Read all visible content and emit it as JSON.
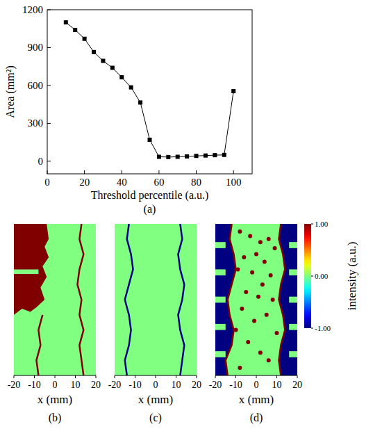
{
  "chart_data": [
    {
      "type": "line",
      "panel": "(a)",
      "xlabel": "Threshold percentile (a.u.)",
      "ylabel": "Area (mm²)",
      "x": [
        10,
        15,
        20,
        25,
        30,
        35,
        40,
        45,
        50,
        55,
        60,
        65,
        70,
        75,
        80,
        85,
        90,
        95,
        100
      ],
      "values": [
        1100,
        1040,
        970,
        865,
        795,
        740,
        665,
        585,
        465,
        170,
        35,
        33,
        35,
        38,
        42,
        45,
        48,
        50,
        555
      ],
      "color": "#000000",
      "marker": "square",
      "xlim": [
        0,
        110
      ],
      "ylim": [
        -100,
        1200
      ],
      "xticks": [
        0,
        20,
        40,
        60,
        80,
        100
      ],
      "yticks": [
        0,
        300,
        600,
        900,
        1200
      ]
    },
    {
      "type": "image",
      "panel": "(b)",
      "xlabel": "x (mm)",
      "xlim": [
        -20,
        20
      ],
      "xticks": [
        -20,
        -10,
        0,
        10,
        20
      ],
      "ylim": [
        0,
        100
      ],
      "tick_labels": "x",
      "background": 0,
      "regions": [
        {
          "kind": "polygon",
          "value": 1,
          "x": [
            -20,
            -4,
            -3,
            -5,
            -3,
            -6,
            -4,
            -7,
            -5,
            -9,
            -12,
            -16,
            -20
          ],
          "y": [
            100,
            100,
            90,
            85,
            78,
            72,
            65,
            58,
            50,
            45,
            42,
            44,
            40
          ]
        },
        {
          "kind": "polygon",
          "value": 0,
          "x": [
            -20,
            -8,
            -8,
            -20
          ],
          "y": [
            70,
            70,
            67,
            67
          ]
        },
        {
          "kind": "line",
          "value": 1,
          "x": [
            -6,
            -8,
            -7,
            -9,
            -8
          ],
          "y": [
            40,
            30,
            20,
            10,
            0
          ]
        },
        {
          "kind": "line",
          "value": 1,
          "x": [
            13,
            12,
            14,
            12,
            11,
            13,
            12,
            14,
            12,
            13,
            14
          ],
          "y": [
            100,
            90,
            80,
            70,
            60,
            50,
            40,
            30,
            20,
            10,
            0
          ]
        }
      ]
    },
    {
      "type": "image",
      "panel": "(c)",
      "xlabel": "x (mm)",
      "xlim": [
        -20,
        20
      ],
      "xticks": [
        -20,
        -10,
        0,
        10,
        20
      ],
      "ylim": [
        0,
        100
      ],
      "tick_labels": "x",
      "background": 0,
      "regions": [
        {
          "kind": "line",
          "value": -1,
          "x": [
            -13,
            -14,
            -12,
            -11,
            -13,
            -15,
            -13,
            -12,
            -13,
            -15,
            -14
          ],
          "y": [
            100,
            90,
            80,
            70,
            60,
            50,
            40,
            30,
            20,
            10,
            0
          ]
        },
        {
          "kind": "line",
          "value": -1,
          "x": [
            12,
            13,
            11,
            12,
            14,
            13,
            11,
            12,
            14,
            13,
            12
          ],
          "y": [
            100,
            90,
            80,
            70,
            60,
            50,
            40,
            30,
            20,
            10,
            0
          ]
        }
      ]
    },
    {
      "type": "image",
      "panel": "(d)",
      "xlabel": "x (mm)",
      "xlim": [
        -20,
        20
      ],
      "xticks": [
        -20,
        -10,
        0,
        10,
        20
      ],
      "ylim": [
        0,
        100
      ],
      "tick_labels": "x",
      "background": 0,
      "regions": [
        {
          "kind": "polygon",
          "value": -1,
          "x": [
            -20,
            -12,
            -13,
            -11,
            -10,
            -12,
            -14,
            -13,
            -11,
            -12,
            -15,
            -14,
            -20
          ],
          "y": [
            100,
            100,
            90,
            80,
            70,
            60,
            50,
            40,
            30,
            20,
            10,
            0,
            0
          ]
        },
        {
          "kind": "polygon",
          "value": -1,
          "x": [
            20,
            12,
            11,
            13,
            14,
            12,
            11,
            13,
            14,
            12,
            11,
            12,
            20
          ],
          "y": [
            100,
            100,
            90,
            80,
            70,
            60,
            50,
            40,
            30,
            20,
            10,
            0,
            0
          ]
        },
        {
          "kind": "polygon",
          "value": 0,
          "x": [
            -20,
            -15,
            -15,
            -20
          ],
          "y": [
            88,
            88,
            84,
            84
          ]
        },
        {
          "kind": "polygon",
          "value": 0,
          "x": [
            -20,
            -15,
            -15,
            -20
          ],
          "y": [
            70,
            70,
            66,
            66
          ]
        },
        {
          "kind": "polygon",
          "value": 0,
          "x": [
            -20,
            -15,
            -15,
            -20
          ],
          "y": [
            52,
            52,
            48,
            48
          ]
        },
        {
          "kind": "polygon",
          "value": 0,
          "x": [
            -20,
            -15,
            -15,
            -20
          ],
          "y": [
            34,
            34,
            30,
            30
          ]
        },
        {
          "kind": "polygon",
          "value": 0,
          "x": [
            -20,
            -15,
            -15,
            -20
          ],
          "y": [
            16,
            16,
            12,
            12
          ]
        },
        {
          "kind": "polygon",
          "value": 0,
          "x": [
            20,
            16,
            16,
            20
          ],
          "y": [
            88,
            88,
            84,
            84
          ]
        },
        {
          "kind": "polygon",
          "value": 0,
          "x": [
            20,
            16,
            16,
            20
          ],
          "y": [
            70,
            70,
            66,
            66
          ]
        },
        {
          "kind": "polygon",
          "value": 0,
          "x": [
            20,
            16,
            16,
            20
          ],
          "y": [
            52,
            52,
            48,
            48
          ]
        },
        {
          "kind": "polygon",
          "value": 0,
          "x": [
            20,
            16,
            16,
            20
          ],
          "y": [
            34,
            34,
            30,
            30
          ]
        },
        {
          "kind": "polygon",
          "value": 0,
          "x": [
            20,
            16,
            16,
            20
          ],
          "y": [
            16,
            16,
            12,
            12
          ]
        },
        {
          "kind": "line",
          "value": 1,
          "x": [
            -12,
            -13,
            -11,
            -10,
            -12,
            -14,
            -13,
            -11,
            -12,
            -15,
            -14
          ],
          "y": [
            100,
            90,
            80,
            70,
            60,
            50,
            40,
            30,
            20,
            10,
            0
          ]
        },
        {
          "kind": "line",
          "value": 1,
          "x": [
            12,
            11,
            13,
            14,
            12,
            11,
            13,
            14,
            12,
            11,
            12
          ],
          "y": [
            100,
            90,
            80,
            70,
            60,
            50,
            40,
            30,
            20,
            10,
            0
          ]
        }
      ],
      "dots": {
        "value": 1,
        "x": [
          -8,
          -3,
          2,
          6,
          9,
          -6,
          0,
          4,
          -9,
          -2,
          7,
          3,
          -5,
          1,
          8,
          -7,
          5,
          -1,
          -10,
          10,
          -4,
          2,
          6,
          -8
        ],
        "y": [
          95,
          92,
          88,
          90,
          84,
          78,
          80,
          75,
          70,
          68,
          66,
          60,
          55,
          52,
          50,
          44,
          40,
          36,
          30,
          28,
          22,
          15,
          10,
          5
        ]
      },
      "colorbar": {
        "range": [
          -1,
          1
        ],
        "ticks": [
          {
            "value": 1,
            "label": "1.00"
          },
          {
            "value": 0,
            "label": "0.00"
          },
          {
            "value": -1,
            "label": "-1.00"
          }
        ],
        "label": "intensity (a.u.)"
      }
    }
  ]
}
